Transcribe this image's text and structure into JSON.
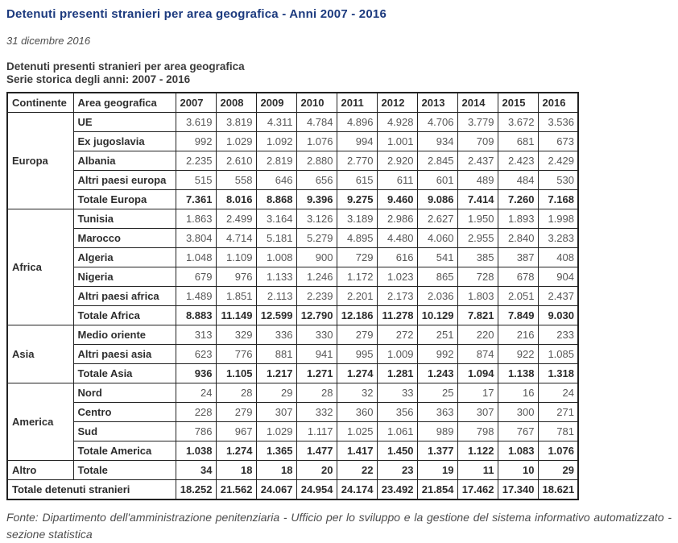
{
  "page": {
    "title": "Detenuti presenti stranieri per area geografica - Anni 2007 - 2016",
    "date_line": "31 dicembre 2016",
    "table_caption_line1": "Detenuti presenti stranieri per area geografica",
    "table_caption_line2": "Serie storica degli anni: 2007 - 2016",
    "source_note": "Fonte: Dipartimento dell'amministrazione penitenziaria - Ufficio per lo sviluppo e la gestione del sistema informativo automatizzato - sezione statistica"
  },
  "colors": {
    "title_blue": "#1c3a7e",
    "heading_gray": "#3a3a3a",
    "number_gray": "#575757",
    "border_dark": "#222222"
  },
  "table": {
    "columns": [
      "Continente",
      "Area geografica",
      "2007",
      "2008",
      "2009",
      "2010",
      "2011",
      "2012",
      "2013",
      "2014",
      "2015",
      "2016"
    ],
    "groups": [
      {
        "continent": "Europa",
        "rows": [
          {
            "area": "UE",
            "total": false,
            "values": [
              "3.619",
              "3.819",
              "4.311",
              "4.784",
              "4.896",
              "4.928",
              "4.706",
              "3.779",
              "3.672",
              "3.536"
            ]
          },
          {
            "area": "Ex jugoslavia",
            "total": false,
            "values": [
              "992",
              "1.029",
              "1.092",
              "1.076",
              "994",
              "1.001",
              "934",
              "709",
              "681",
              "673"
            ]
          },
          {
            "area": "Albania",
            "total": false,
            "values": [
              "2.235",
              "2.610",
              "2.819",
              "2.880",
              "2.770",
              "2.920",
              "2.845",
              "2.437",
              "2.423",
              "2.429"
            ]
          },
          {
            "area": "Altri paesi europa",
            "total": false,
            "values": [
              "515",
              "558",
              "646",
              "656",
              "615",
              "611",
              "601",
              "489",
              "484",
              "530"
            ]
          },
          {
            "area": "Totale Europa",
            "total": true,
            "values": [
              "7.361",
              "8.016",
              "8.868",
              "9.396",
              "9.275",
              "9.460",
              "9.086",
              "7.414",
              "7.260",
              "7.168"
            ]
          }
        ]
      },
      {
        "continent": "Africa",
        "rows": [
          {
            "area": "Tunisia",
            "total": false,
            "values": [
              "1.863",
              "2.499",
              "3.164",
              "3.126",
              "3.189",
              "2.986",
              "2.627",
              "1.950",
              "1.893",
              "1.998"
            ]
          },
          {
            "area": "Marocco",
            "total": false,
            "values": [
              "3.804",
              "4.714",
              "5.181",
              "5.279",
              "4.895",
              "4.480",
              "4.060",
              "2.955",
              "2.840",
              "3.283"
            ]
          },
          {
            "area": "Algeria",
            "total": false,
            "values": [
              "1.048",
              "1.109",
              "1.008",
              "900",
              "729",
              "616",
              "541",
              "385",
              "387",
              "408"
            ]
          },
          {
            "area": "Nigeria",
            "total": false,
            "values": [
              "679",
              "976",
              "1.133",
              "1.246",
              "1.172",
              "1.023",
              "865",
              "728",
              "678",
              "904"
            ]
          },
          {
            "area": "Altri paesi africa",
            "total": false,
            "values": [
              "1.489",
              "1.851",
              "2.113",
              "2.239",
              "2.201",
              "2.173",
              "2.036",
              "1.803",
              "2.051",
              "2.437"
            ]
          },
          {
            "area": "Totale Africa",
            "total": true,
            "values": [
              "8.883",
              "11.149",
              "12.599",
              "12.790",
              "12.186",
              "11.278",
              "10.129",
              "7.821",
              "7.849",
              "9.030"
            ]
          }
        ]
      },
      {
        "continent": "Asia",
        "rows": [
          {
            "area": "Medio oriente",
            "total": false,
            "values": [
              "313",
              "329",
              "336",
              "330",
              "279",
              "272",
              "251",
              "220",
              "216",
              "233"
            ]
          },
          {
            "area": "Altri paesi asia",
            "total": false,
            "values": [
              "623",
              "776",
              "881",
              "941",
              "995",
              "1.009",
              "992",
              "874",
              "922",
              "1.085"
            ]
          },
          {
            "area": "Totale Asia",
            "total": true,
            "values": [
              "936",
              "1.105",
              "1.217",
              "1.271",
              "1.274",
              "1.281",
              "1.243",
              "1.094",
              "1.138",
              "1.318"
            ]
          }
        ]
      },
      {
        "continent": "America",
        "rows": [
          {
            "area": "Nord",
            "total": false,
            "values": [
              "24",
              "28",
              "29",
              "28",
              "32",
              "33",
              "25",
              "17",
              "16",
              "24"
            ]
          },
          {
            "area": "Centro",
            "total": false,
            "values": [
              "228",
              "279",
              "307",
              "332",
              "360",
              "356",
              "363",
              "307",
              "300",
              "271"
            ]
          },
          {
            "area": "Sud",
            "total": false,
            "values": [
              "786",
              "967",
              "1.029",
              "1.117",
              "1.025",
              "1.061",
              "989",
              "798",
              "767",
              "781"
            ]
          },
          {
            "area": "Totale America",
            "total": true,
            "values": [
              "1.038",
              "1.274",
              "1.365",
              "1.477",
              "1.417",
              "1.450",
              "1.377",
              "1.122",
              "1.083",
              "1.076"
            ]
          }
        ]
      },
      {
        "continent": "Altro",
        "rows": [
          {
            "area": "Totale",
            "total": true,
            "values": [
              "34",
              "18",
              "18",
              "20",
              "22",
              "23",
              "19",
              "11",
              "10",
              "29"
            ]
          }
        ]
      }
    ],
    "grand_total": {
      "label": "Totale detenuti stranieri",
      "values": [
        "18.252",
        "21.562",
        "24.067",
        "24.954",
        "24.174",
        "23.492",
        "21.854",
        "17.462",
        "17.340",
        "18.621"
      ]
    }
  }
}
